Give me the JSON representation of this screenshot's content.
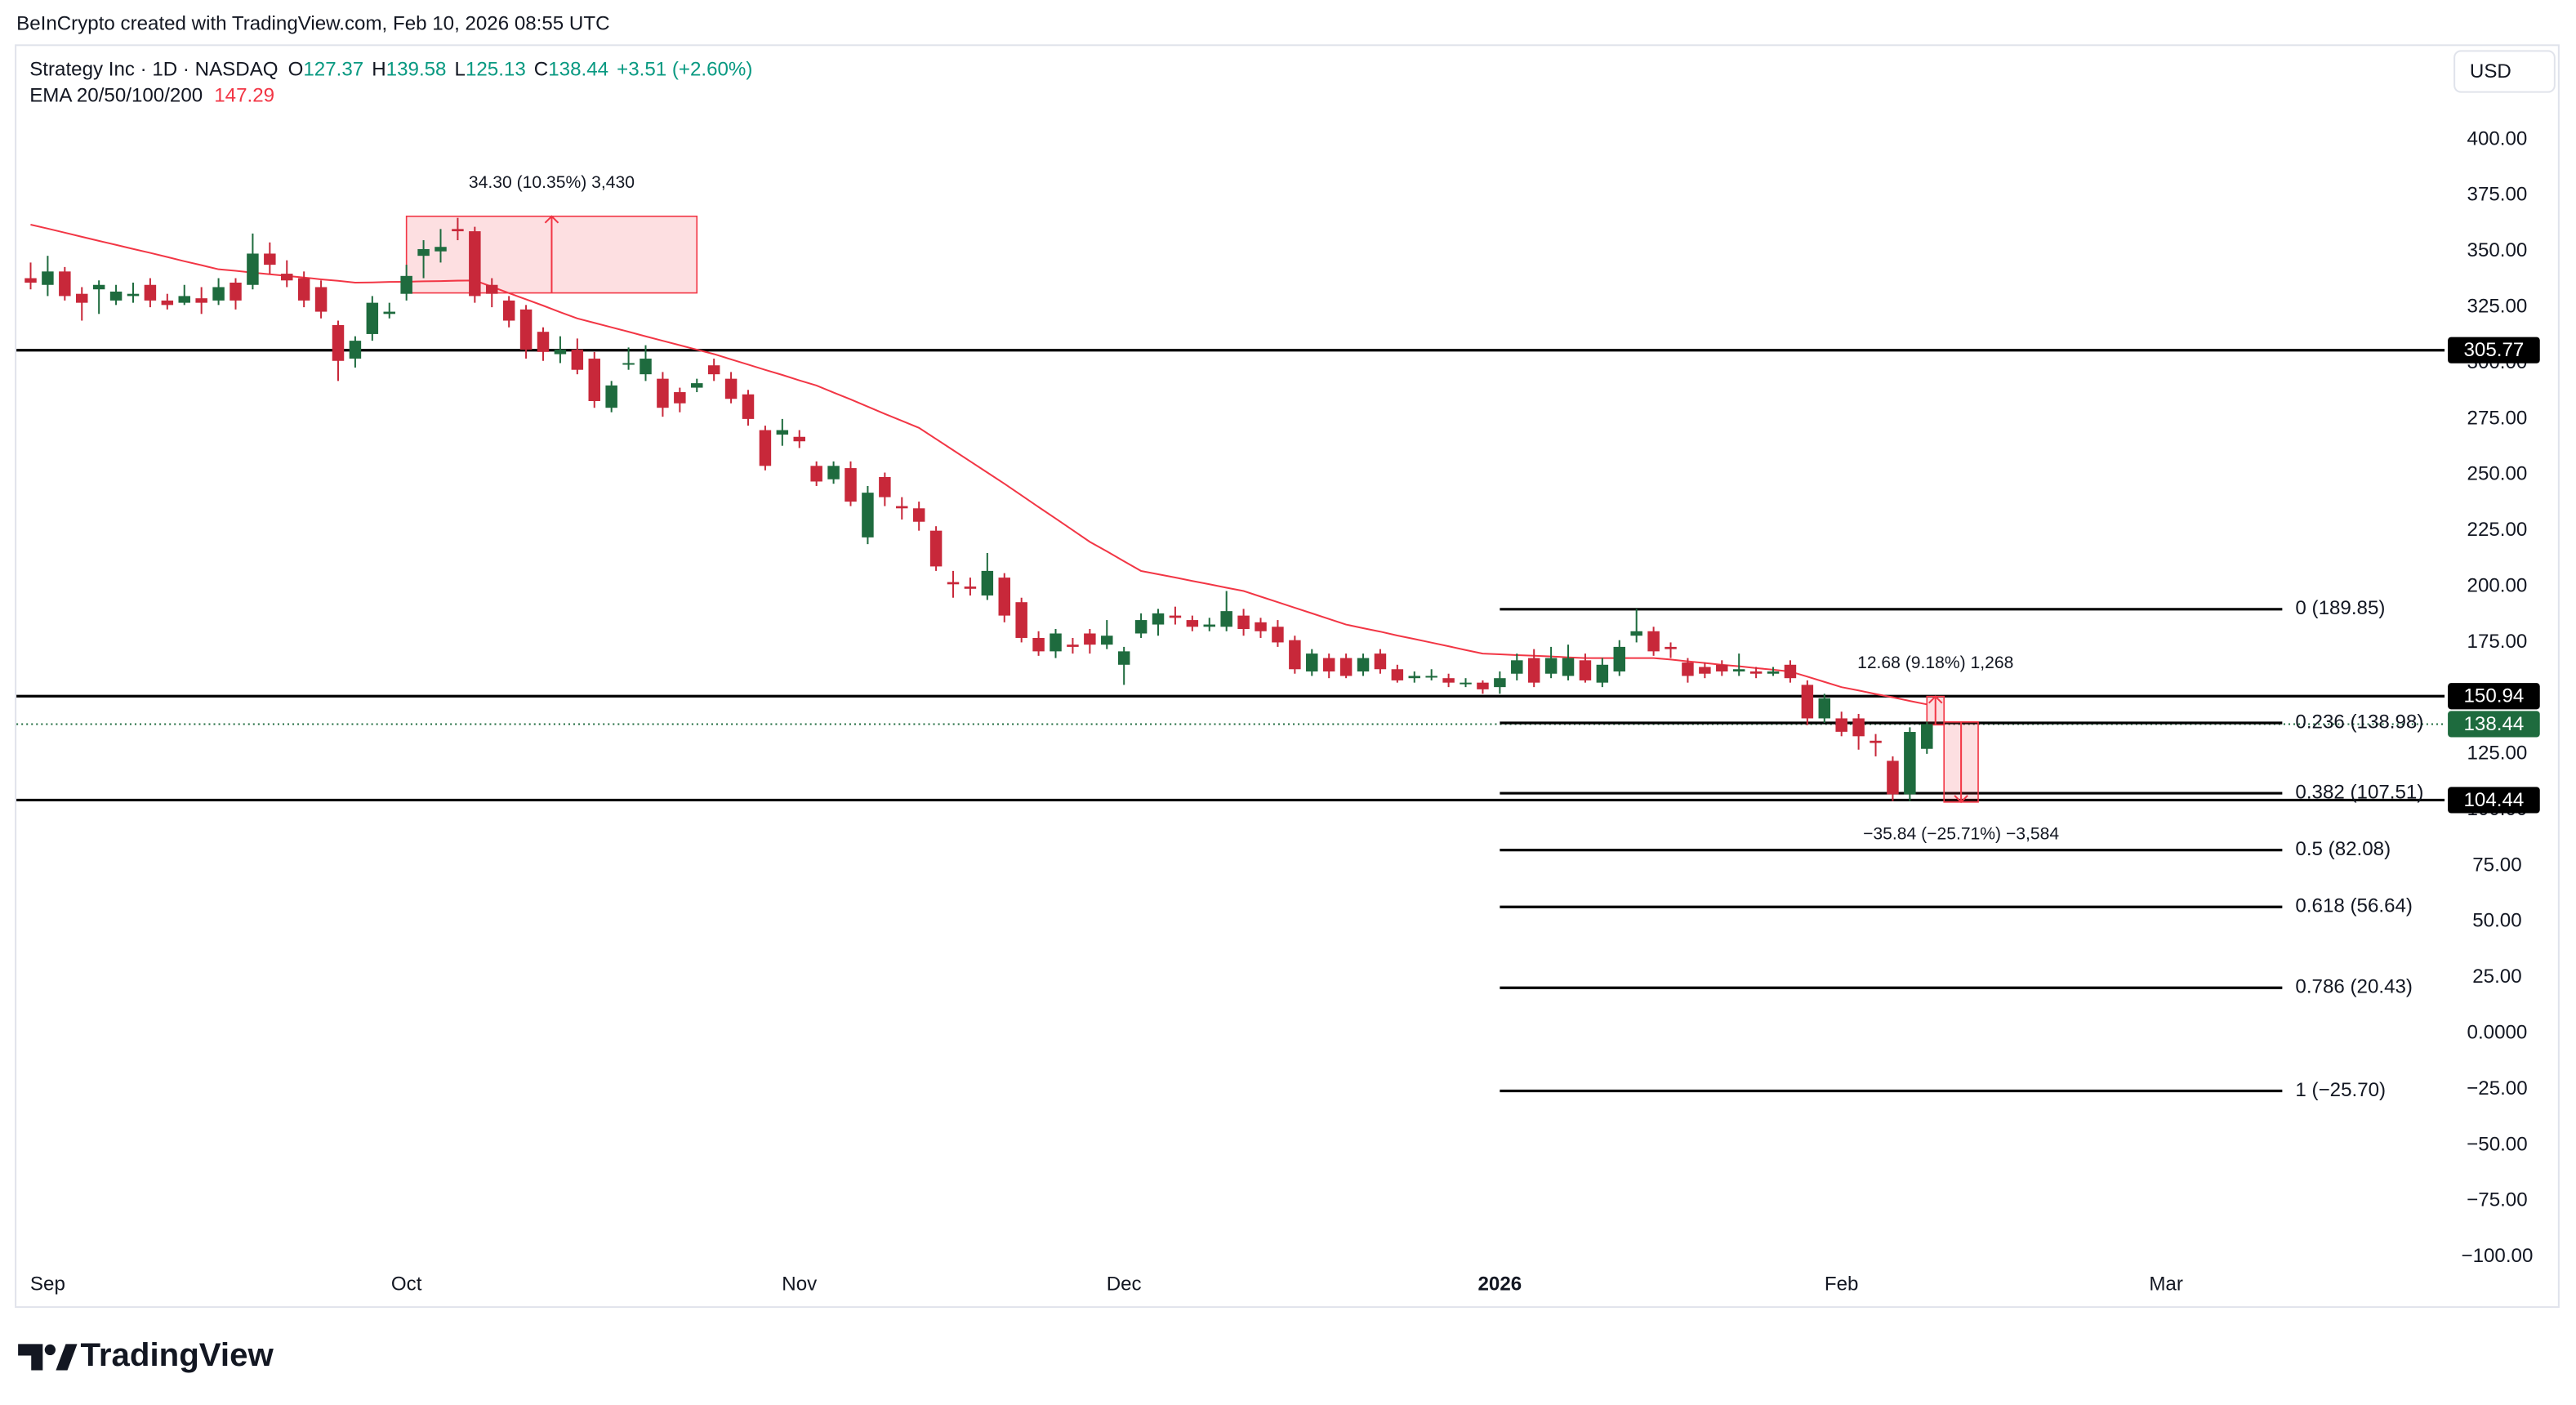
{
  "header": "BeInCrypto created with TradingView.com, Feb 10, 2026 08:55 UTC",
  "brand": "TradingView",
  "chart_data": {
    "type": "candlestick",
    "title": "Strategy Inc · 1D · NASDAQ",
    "ohlc": [
      {
        "label": "O",
        "value": 127.37
      },
      {
        "label": "H",
        "value": 139.58
      },
      {
        "label": "L",
        "value": 125.13
      },
      {
        "label": "C",
        "value": 138.44
      }
    ],
    "change": "+3.51 (+2.60%)",
    "currency": "USD",
    "up_color": "#1e6b3e",
    "down_color": "#c8283a",
    "open": [
      338,
      335,
      341,
      331,
      333,
      328,
      330,
      335,
      328,
      327,
      329,
      328,
      336,
      335,
      349,
      340,
      338,
      334,
      317,
      302,
      313,
      322,
      331,
      348,
      350,
      360,
      359,
      335,
      328,
      324,
      314,
      304,
      306,
      302,
      280,
      300,
      295,
      293,
      287,
      289,
      299,
      293,
      286,
      270,
      268,
      267,
      254,
      248,
      253,
      222,
      249,
      236,
      235,
      225,
      202,
      200,
      196,
      204,
      193,
      177,
      171,
      174,
      179,
      174,
      165,
      179,
      183,
      187,
      185,
      182,
      182,
      187,
      184,
      182,
      176,
      162,
      168,
      168,
      162,
      170,
      163,
      159,
      160,
      159,
      157,
      157,
      155,
      161,
      168,
      161,
      160,
      167,
      157,
      162,
      178,
      180,
      173,
      166,
      164,
      165,
      162,
      162,
      161,
      165,
      156,
      141,
      141,
      141,
      131,
      122,
      107,
      127.37
    ],
    "high": [
      345,
      348,
      343,
      334,
      337,
      335,
      336,
      338,
      331,
      335,
      334,
      338,
      338,
      358,
      354,
      346,
      341,
      337,
      319,
      312,
      330,
      327,
      344,
      355,
      360,
      365,
      361,
      338,
      330,
      326,
      316,
      312,
      311,
      305,
      292,
      307,
      308,
      296,
      289,
      293,
      302,
      296,
      288,
      272,
      275,
      270,
      256,
      256,
      256,
      245,
      251,
      240,
      238,
      227,
      207,
      204,
      215,
      206,
      195,
      180,
      181,
      177,
      181,
      185,
      173,
      188,
      190,
      191,
      187,
      186,
      198,
      190,
      186,
      185,
      178,
      172,
      170,
      170,
      170,
      172,
      165,
      162,
      163,
      161,
      159,
      158,
      162,
      170,
      172,
      173,
      174,
      170,
      168,
      176,
      190,
      182,
      175,
      168,
      166,
      167,
      170,
      164,
      164,
      167,
      158,
      152,
      144,
      143,
      134,
      124,
      137,
      139.58
    ],
    "low": [
      333,
      330,
      328,
      319,
      322,
      326,
      327,
      325,
      324,
      326,
      322,
      326,
      324,
      333,
      340,
      334,
      325,
      320,
      292,
      298,
      310,
      320,
      328,
      338,
      345,
      355,
      327,
      325,
      316,
      302,
      301,
      300,
      295,
      280,
      278,
      297,
      292,
      276,
      278,
      287,
      292,
      282,
      272,
      252,
      263,
      262,
      245,
      246,
      236,
      219,
      236,
      230,
      225,
      207,
      195,
      196,
      194,
      184,
      175,
      169,
      168,
      170,
      170,
      172,
      156,
      177,
      178,
      183,
      180,
      180,
      180,
      178,
      177,
      173,
      161,
      160,
      159,
      159,
      160,
      161,
      157,
      157,
      158,
      155,
      155,
      152,
      152,
      158,
      155,
      159,
      158,
      157,
      155,
      160,
      175,
      169,
      168,
      157,
      159,
      160,
      160,
      159,
      160,
      157,
      138,
      139,
      133,
      127,
      124,
      104,
      104,
      125.13
    ],
    "close": [
      336,
      341,
      330,
      327,
      335,
      332,
      331,
      328,
      326,
      330,
      327,
      334,
      328,
      349,
      344,
      337,
      328,
      323,
      301,
      310,
      327,
      323,
      339,
      351,
      352,
      359,
      330,
      331,
      319,
      306,
      305,
      306,
      297,
      283,
      290,
      300,
      302,
      280,
      282,
      291,
      295,
      284,
      275,
      254,
      270,
      265,
      247,
      254,
      238,
      242,
      240,
      235,
      229,
      209,
      201,
      199,
      207,
      187,
      177,
      171,
      179,
      173,
      174,
      178,
      171,
      185,
      188,
      186,
      182,
      183,
      189,
      181,
      180,
      175,
      163,
      170,
      162,
      160,
      168,
      163,
      158,
      160,
      160,
      157,
      157,
      154,
      159,
      167,
      157,
      168,
      168,
      158,
      165,
      173,
      180,
      171,
      172,
      160,
      161,
      162,
      163,
      161,
      162,
      159,
      141,
      150,
      135,
      133,
      130,
      107,
      134.93,
      138.44
    ],
    "ema": {
      "name": "EMA 20/50/100/200",
      "value": 147.29,
      "color": "#f23645",
      "values": [
        362,
        360.2,
        358.4,
        356.5,
        354.7,
        352.9,
        351.1,
        349.3,
        347.5,
        345.6,
        343.8,
        342,
        341.3,
        340.5,
        339.8,
        339,
        338.3,
        337.5,
        336.8,
        336,
        336.1,
        336.3,
        336.4,
        336.6,
        336.7,
        336.9,
        337,
        334.2,
        331.3,
        328.5,
        325.7,
        322.8,
        320,
        318,
        316,
        314,
        312,
        310,
        308,
        306,
        304,
        301.7,
        299.3,
        297,
        294.7,
        292.3,
        290,
        286.8,
        283.7,
        280.5,
        277.3,
        274.2,
        271,
        266,
        261,
        256,
        251,
        246,
        240.8,
        235.6,
        230.4,
        225.2,
        220,
        215.7,
        211.3,
        207,
        205.5,
        204,
        202.5,
        201,
        199.5,
        198,
        195.5,
        193,
        190.5,
        188,
        185.5,
        183,
        181.4,
        179.8,
        178.1,
        176.5,
        174.9,
        173.3,
        171.6,
        170,
        169.7,
        169.3,
        169,
        168.7,
        168.3,
        168,
        168,
        168,
        168,
        168,
        167.3,
        166.5,
        165.8,
        165,
        164.3,
        163.5,
        162.8,
        162,
        159.7,
        157.3,
        155,
        153.5,
        151.9,
        150.4,
        148.8,
        147.29
      ]
    },
    "xlim": [
      -0.83,
      141.3
    ],
    "xticks": [
      {
        "value": 1,
        "label": "Sep"
      },
      {
        "value": 22,
        "label": "Oct"
      },
      {
        "value": 45,
        "label": "Nov"
      },
      {
        "value": 64,
        "label": "Dec"
      },
      {
        "value": 86,
        "label": "2026",
        "strong": true
      },
      {
        "value": 106,
        "label": "Feb"
      },
      {
        "value": 125,
        "label": "Mar"
      }
    ],
    "ylim": [
      -103.7,
      441.9
    ],
    "yticks": [
      {
        "value": 400,
        "label": "400.00"
      },
      {
        "value": 375,
        "label": "375.00"
      },
      {
        "value": 350,
        "label": "350.00"
      },
      {
        "value": 325,
        "label": "325.00"
      },
      {
        "value": 300,
        "label": "300.00"
      },
      {
        "value": 275,
        "label": "275.00"
      },
      {
        "value": 250,
        "label": "250.00"
      },
      {
        "value": 225,
        "label": "225.00"
      },
      {
        "value": 200,
        "label": "200.00"
      },
      {
        "value": 175,
        "label": "175.00"
      },
      {
        "value": 150,
        "label": "150.00"
      },
      {
        "value": 125,
        "label": "125.00"
      },
      {
        "value": 100,
        "label": "100.00"
      },
      {
        "value": 75,
        "label": "75.00"
      },
      {
        "value": 50,
        "label": "50.00"
      },
      {
        "value": 25,
        "label": "25.00"
      },
      {
        "value": 0,
        "label": "0.0000"
      },
      {
        "value": -25,
        "label": "−25.00"
      },
      {
        "value": -50,
        "label": "−50.00"
      },
      {
        "value": -75,
        "label": "−75.00"
      },
      {
        "value": -100,
        "label": "−100.00"
      }
    ],
    "grid": false,
    "levels": [
      {
        "value": 305.77,
        "color": "#000000"
      },
      {
        "value": 150.94,
        "color": "#000000"
      },
      {
        "value": 104.44,
        "color": "#000000"
      }
    ],
    "last_price": {
      "value": 138.44,
      "color": "#1e6b3e"
    },
    "fib": {
      "start": 86,
      "end": 131.8,
      "color": "#000000",
      "levels": [
        {
          "value": 189.85,
          "label": "0 (189.85)"
        },
        {
          "value": 138.98,
          "label": "0.236 (138.98)"
        },
        {
          "value": 107.51,
          "label": "0.382 (107.51)"
        },
        {
          "value": 82.08,
          "label": "0.5 (82.08)"
        },
        {
          "value": 56.64,
          "label": "0.618 (56.64)"
        },
        {
          "value": 20.43,
          "label": "0.786 (20.43)"
        },
        {
          "value": -25.7,
          "label": "1 (−25.70)"
        }
      ]
    },
    "measures": [
      {
        "label": "34.30 (10.35%) 3,430",
        "start": 22,
        "end": 39,
        "from": 331.4,
        "to": 365.7
      },
      {
        "label": "12.68 (9.18%) 1,268",
        "start": 111,
        "end": 112,
        "from": 138.12,
        "to": 150.8
      },
      {
        "label": "−35.84 (−25.71%) −3,584",
        "start": 112,
        "end": 114,
        "from": 139.4,
        "to": 103.56
      }
    ]
  }
}
